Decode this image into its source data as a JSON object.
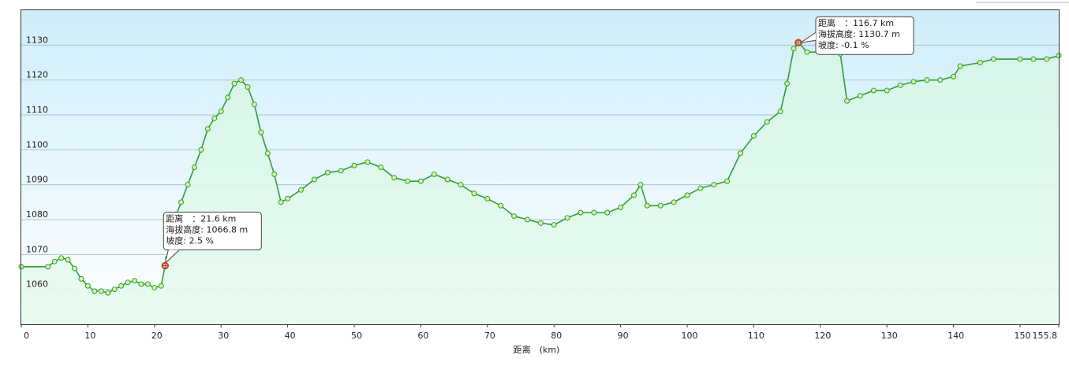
{
  "chart_data": {
    "type": "line",
    "x_label": "距离　(km)",
    "x": [
      0,
      4,
      5,
      6,
      7,
      8,
      9,
      10,
      11,
      12,
      13,
      14,
      15,
      16,
      17,
      18,
      19,
      20,
      21,
      21.6,
      22,
      23,
      24,
      25,
      26,
      27,
      28,
      29,
      30,
      31,
      32,
      33,
      34,
      35,
      36,
      37,
      38,
      39,
      40,
      42,
      44,
      46,
      48,
      50,
      52,
      54,
      56,
      58,
      60,
      62,
      64,
      66,
      68,
      70,
      72,
      74,
      76,
      78,
      80,
      82,
      84,
      86,
      88,
      90,
      92,
      93,
      94,
      96,
      98,
      100,
      102,
      104,
      106,
      108,
      110,
      112,
      114,
      115,
      116,
      116.7,
      118,
      120,
      123,
      124,
      126,
      128,
      130,
      132,
      134,
      136,
      138,
      140,
      141,
      144,
      146,
      150,
      152,
      154,
      155.8
    ],
    "series": [
      {
        "name": "海拔高度",
        "color": "#2e9e3e",
        "values": [
          1066.5,
          1066.5,
          1068,
          1069,
          1068.5,
          1066,
          1063,
          1061,
          1059.5,
          1059.5,
          1059,
          1060,
          1061,
          1062,
          1062.5,
          1061.5,
          1061.5,
          1060.5,
          1061,
          1066.8,
          1069,
          1080,
          1085,
          1090,
          1095,
          1100,
          1106,
          1109,
          1111,
          1115,
          1119,
          1120,
          1118,
          1113,
          1105,
          1099,
          1093,
          1085,
          1086,
          1088.5,
          1091.5,
          1093.5,
          1094,
          1095.5,
          1096.5,
          1095,
          1092,
          1091,
          1091,
          1093,
          1091.5,
          1090,
          1087.5,
          1086,
          1084,
          1081,
          1080,
          1079,
          1078.5,
          1080.5,
          1082,
          1082,
          1082,
          1083.5,
          1087,
          1090,
          1084,
          1084,
          1085,
          1087,
          1089,
          1090,
          1091,
          1099,
          1104,
          1108,
          1111,
          1119,
          1129,
          1130.7,
          1128,
          1128,
          1127.5,
          1114,
          1115.5,
          1117,
          1117,
          1118.5,
          1119.5,
          1120,
          1120,
          1121,
          1124,
          1125,
          1126,
          1126,
          1126,
          1126,
          1127
        ]
      }
    ],
    "xlim": [
      0,
      155.8
    ],
    "ylim": [
      1050,
      1140
    ],
    "xticks": [
      0,
      10,
      20,
      30,
      40,
      50,
      60,
      70,
      80,
      90,
      100,
      110,
      120,
      130,
      140,
      150,
      155.8
    ],
    "yticks": [
      1060,
      1070,
      1080,
      1090,
      1100,
      1110,
      1120,
      1130
    ],
    "grid": true,
    "annotations": [
      {
        "x": 21.6,
        "value": 1066.8,
        "lines": [
          "距离　：21.6 km",
          "海拔高度: 1066.8 m",
          "坡度: 2.5 %"
        ]
      },
      {
        "x": 116.7,
        "value": 1130.7,
        "lines": [
          "距离　：116.7 km",
          "海拔高度: 1130.7 m",
          "坡度: -0.1 %"
        ]
      }
    ]
  }
}
